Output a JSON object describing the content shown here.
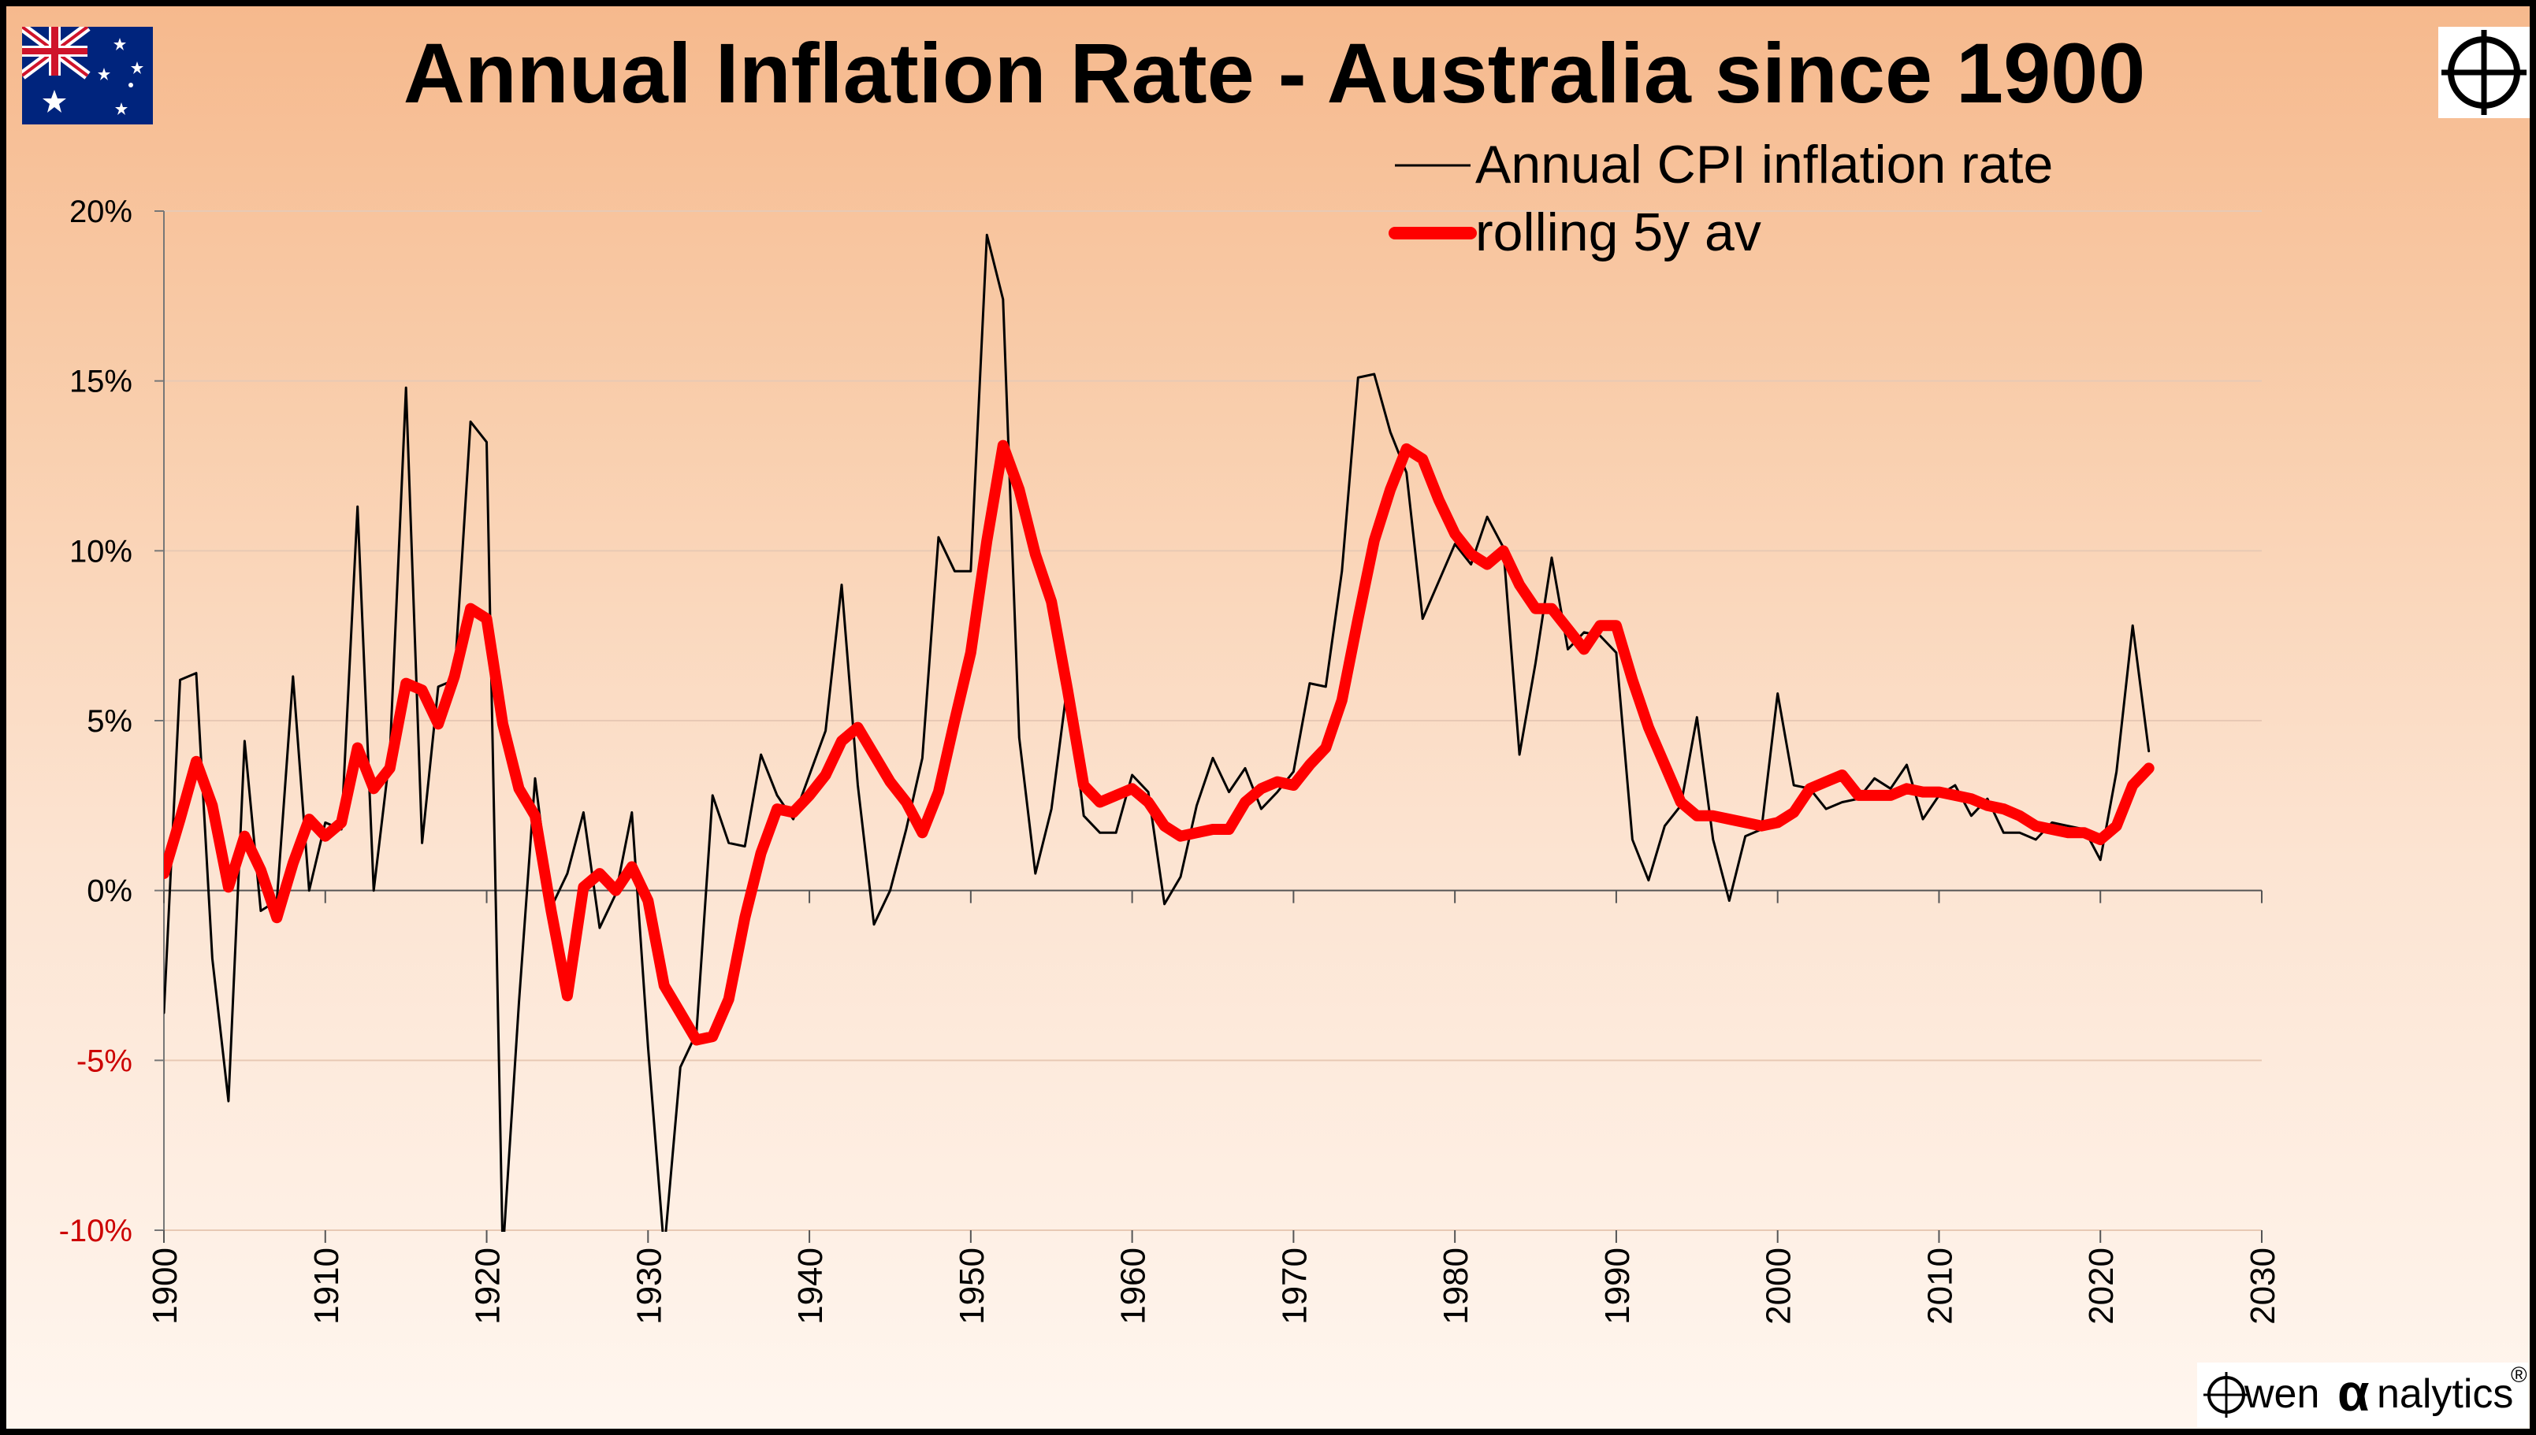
{
  "brand": {
    "accent_red": "#ff0000",
    "line_black": "#000000",
    "negative_label_color": "#cc0000",
    "watermark_left": "wen ",
    "watermark_alpha": "α",
    "watermark_right": "nalytics",
    "registered": "®",
    "flag_icon": "australia-flag-icon",
    "logo_icon": "crosshair-circle-icon"
  },
  "chart_data": {
    "type": "line",
    "title": "Annual Inflation Rate - Australia since 1900",
    "xlabel": "",
    "ylabel": "",
    "xlim": [
      1900,
      2030
    ],
    "ylim": [
      -10,
      20
    ],
    "x_ticks": [
      "1900",
      "1910",
      "1920",
      "1930",
      "1940",
      "1950",
      "1960",
      "1970",
      "1980",
      "1990",
      "2000",
      "2010",
      "2020",
      "2030"
    ],
    "y_ticks": [
      "20%",
      "15%",
      "10%",
      "5%",
      "0%",
      "-5%",
      "-10%"
    ],
    "y_tick_values": [
      20,
      15,
      10,
      5,
      0,
      -5,
      -10
    ],
    "grid": "horizontal",
    "legend_position": "top-center",
    "series": [
      {
        "name": "Annual CPI inflation rate",
        "color": "#000000",
        "style": "thin",
        "x": [
          1900,
          1901,
          1902,
          1903,
          1904,
          1905,
          1906,
          1907,
          1908,
          1909,
          1910,
          1911,
          1912,
          1913,
          1914,
          1915,
          1916,
          1917,
          1918,
          1919,
          1920,
          1921,
          1922,
          1923,
          1924,
          1925,
          1926,
          1927,
          1928,
          1929,
          1930,
          1931,
          1932,
          1933,
          1934,
          1935,
          1936,
          1937,
          1938,
          1939,
          1940,
          1941,
          1942,
          1943,
          1944,
          1945,
          1946,
          1947,
          1948,
          1949,
          1950,
          1951,
          1952,
          1953,
          1954,
          1955,
          1956,
          1957,
          1958,
          1959,
          1960,
          1961,
          1962,
          1963,
          1964,
          1965,
          1966,
          1967,
          1968,
          1969,
          1970,
          1971,
          1972,
          1973,
          1974,
          1975,
          1976,
          1977,
          1978,
          1979,
          1980,
          1981,
          1982,
          1983,
          1984,
          1985,
          1986,
          1987,
          1988,
          1989,
          1990,
          1991,
          1992,
          1993,
          1994,
          1995,
          1996,
          1997,
          1998,
          1999,
          2000,
          2001,
          2002,
          2003,
          2004,
          2005,
          2006,
          2007,
          2008,
          2009,
          2010,
          2011,
          2012,
          2013,
          2014,
          2015,
          2016,
          2017,
          2018,
          2019,
          2020,
          2021,
          2022,
          2023
        ],
        "y": [
          -3.6,
          6.2,
          6.4,
          -2.0,
          -6.2,
          4.4,
          -0.6,
          -0.3,
          6.3,
          0.0,
          2.0,
          1.8,
          11.3,
          0.0,
          4.0,
          14.8,
          1.4,
          6.0,
          6.2,
          13.8,
          13.2,
          -10.7,
          -3.3,
          3.3,
          -0.5,
          0.5,
          2.3,
          -1.1,
          -0.1,
          2.3,
          -4.6,
          -10.6,
          -5.2,
          -4.2,
          2.8,
          1.4,
          1.3,
          4.0,
          2.8,
          2.1,
          3.4,
          4.7,
          9.0,
          3.1,
          -1.0,
          0.0,
          1.8,
          3.9,
          10.4,
          9.4,
          9.4,
          19.3,
          17.4,
          4.5,
          0.5,
          2.4,
          6.1,
          2.2,
          1.7,
          1.7,
          3.4,
          2.9,
          -0.4,
          0.4,
          2.5,
          3.9,
          2.9,
          3.6,
          2.4,
          2.9,
          3.5,
          6.1,
          6.0,
          9.4,
          15.1,
          15.2,
          13.5,
          12.3,
          8.0,
          9.1,
          10.2,
          9.6,
          11.0,
          10.1,
          4.0,
          6.7,
          9.8,
          7.1,
          7.6,
          7.5,
          7.0,
          1.5,
          0.3,
          1.9,
          2.5,
          5.1,
          1.5,
          -0.3,
          1.6,
          1.8,
          5.8,
          3.1,
          3.0,
          2.4,
          2.6,
          2.7,
          3.3,
          3.0,
          3.7,
          2.1,
          2.8,
          3.1,
          2.2,
          2.7,
          1.7,
          1.7,
          1.5,
          2.0,
          1.9,
          1.8,
          0.9,
          3.5,
          7.8,
          4.1
        ]
      },
      {
        "name": "rolling 5y av",
        "color": "#ff0000",
        "style": "thick",
        "x": [
          1900,
          1901,
          1902,
          1903,
          1904,
          1905,
          1906,
          1907,
          1908,
          1909,
          1910,
          1911,
          1912,
          1913,
          1914,
          1915,
          1916,
          1917,
          1918,
          1919,
          1920,
          1921,
          1922,
          1923,
          1924,
          1925,
          1926,
          1927,
          1928,
          1929,
          1930,
          1931,
          1932,
          1933,
          1934,
          1935,
          1936,
          1937,
          1938,
          1939,
          1940,
          1941,
          1942,
          1943,
          1944,
          1945,
          1946,
          1947,
          1948,
          1949,
          1950,
          1951,
          1952,
          1953,
          1954,
          1955,
          1956,
          1957,
          1958,
          1959,
          1960,
          1961,
          1962,
          1963,
          1964,
          1965,
          1966,
          1967,
          1968,
          1969,
          1970,
          1971,
          1972,
          1973,
          1974,
          1975,
          1976,
          1977,
          1978,
          1979,
          1980,
          1981,
          1982,
          1983,
          1984,
          1985,
          1986,
          1987,
          1988,
          1989,
          1990,
          1991,
          1992,
          1993,
          1994,
          1995,
          1996,
          1997,
          1998,
          1999,
          2000,
          2001,
          2002,
          2003,
          2004,
          2005,
          2006,
          2007,
          2008,
          2009,
          2010,
          2011,
          2012,
          2013,
          2014,
          2015,
          2016,
          2017,
          2018,
          2019,
          2020,
          2021,
          2022,
          2023
        ],
        "y": [
          0.5,
          2.1,
          3.8,
          2.5,
          0.1,
          1.6,
          0.6,
          -0.8,
          0.8,
          2.1,
          1.6,
          2.0,
          4.2,
          3.0,
          3.6,
          6.1,
          5.9,
          4.9,
          6.3,
          8.3,
          8.0,
          4.9,
          3.0,
          2.2,
          -0.6,
          -3.1,
          0.1,
          0.5,
          0.0,
          0.7,
          -0.3,
          -2.8,
          -3.6,
          -4.4,
          -4.3,
          -3.2,
          -0.8,
          1.1,
          2.4,
          2.3,
          2.8,
          3.4,
          4.4,
          4.8,
          4.0,
          3.2,
          2.6,
          1.7,
          2.9,
          5.0,
          7.0,
          10.3,
          13.1,
          11.8,
          9.9,
          8.5,
          5.9,
          3.1,
          2.6,
          2.8,
          3.0,
          2.6,
          1.9,
          1.6,
          1.7,
          1.8,
          1.8,
          2.6,
          3.0,
          3.2,
          3.1,
          3.7,
          4.2,
          5.6,
          8.0,
          10.3,
          11.8,
          13.0,
          12.7,
          11.5,
          10.5,
          9.9,
          9.6,
          10.0,
          9.0,
          8.3,
          8.3,
          7.7,
          7.1,
          7.8,
          7.8,
          6.2,
          4.8,
          3.7,
          2.6,
          2.2,
          2.2,
          2.1,
          2.0,
          1.9,
          2.0,
          2.3,
          3.0,
          3.2,
          3.4,
          2.8,
          2.8,
          2.8,
          3.0,
          2.9,
          2.9,
          2.8,
          2.7,
          2.5,
          2.4,
          2.2,
          1.9,
          1.8,
          1.7,
          1.7,
          1.5,
          1.9,
          3.1,
          3.6
        ]
      }
    ]
  }
}
